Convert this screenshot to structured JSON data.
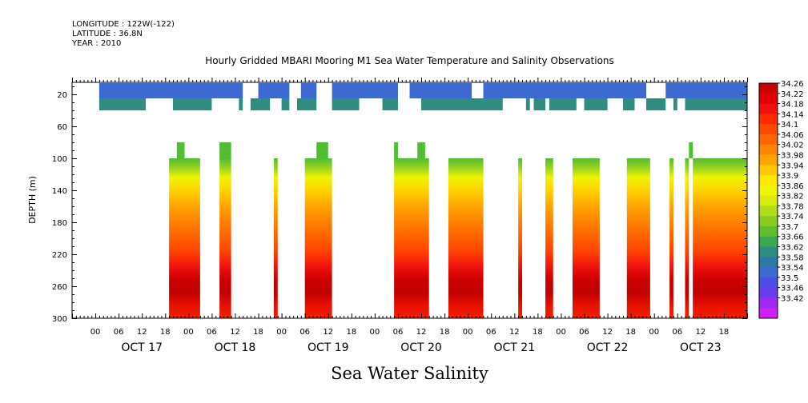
{
  "header": {
    "longitude": "LONGITUDE : 122W(-122)",
    "latitude": "LATITUDE : 36.8N",
    "year": "YEAR : 2010"
  },
  "title": "Hourly Gridded MBARI Mooring M1 Sea Water Temperature and Salinity Observations",
  "footer": "Sea Water Salinity",
  "chart_data": {
    "type": "heatmap",
    "title": "Hourly Gridded MBARI Mooring M1 Sea Water Temperature and Salinity Observations",
    "xlabel": "",
    "ylabel": "DEPTH (m)",
    "x_unit": "hours from OCT 16 18:00",
    "xlim": [
      0,
      174
    ],
    "ylim": [
      300,
      5
    ],
    "x_ticks_hours": [
      "00",
      "06",
      "12",
      "18",
      "00",
      "06",
      "12",
      "18",
      "00",
      "06",
      "12",
      "18",
      "00",
      "06",
      "12",
      "18",
      "00",
      "06",
      "12",
      "18",
      "00",
      "06",
      "12",
      "18",
      "00",
      "06",
      "12",
      "18"
    ],
    "x_day_labels": [
      "OCT 17",
      "OCT 18",
      "OCT 19",
      "OCT 20",
      "OCT 21",
      "OCT 22",
      "OCT 23"
    ],
    "y_ticks": [
      20,
      60,
      100,
      140,
      180,
      220,
      260,
      300
    ],
    "colorbar": {
      "min": 33.42,
      "max": 34.26,
      "step": 0.04,
      "labels": [
        "34.26",
        "34.22",
        "34.18",
        "34.14",
        "34.1",
        "34.06",
        "34.02",
        "33.98",
        "33.94",
        "33.9",
        "33.86",
        "33.82",
        "33.78",
        "33.74",
        "33.7",
        "33.66",
        "33.62",
        "33.58",
        "33.54",
        "33.5",
        "33.46",
        "33.42"
      ],
      "colors": [
        "#c80000",
        "#e00000",
        "#f01010",
        "#ff2a00",
        "#ff4800",
        "#ff6600",
        "#ff8400",
        "#ffa400",
        "#ffc800",
        "#ffe800",
        "#f2f500",
        "#d6ec10",
        "#b0dc18",
        "#88cc22",
        "#5ebe30",
        "#3ca850",
        "#2e8c80",
        "#2e78a8",
        "#3c6ad0",
        "#4c4ce6",
        "#6a3cf0",
        "#a028f2",
        "#d020f8"
      ]
    },
    "columns": {
      "surface_segments": [
        [
          4,
          174
        ]
      ],
      "surface_gaps": [
        [
          4,
          7
        ],
        [
          44,
          48
        ],
        [
          56,
          59
        ],
        [
          63,
          67
        ],
        [
          84,
          87
        ],
        [
          103,
          106
        ],
        [
          148,
          153
        ]
      ],
      "mid_segments": [
        [
          4,
          174
        ]
      ],
      "mid_gaps": [
        [
          4,
          7
        ],
        [
          19,
          26
        ],
        [
          36,
          43
        ],
        [
          44,
          46
        ],
        [
          51,
          54
        ],
        [
          56,
          58
        ],
        [
          63,
          67
        ],
        [
          74,
          80
        ],
        [
          84,
          90
        ],
        [
          111,
          114
        ],
        [
          114,
          117
        ],
        [
          118,
          119
        ],
        [
          122,
          123
        ],
        [
          130,
          132
        ],
        [
          138,
          142
        ],
        [
          145,
          148
        ],
        [
          153,
          155
        ],
        [
          156,
          158
        ]
      ],
      "deep_segments": [
        [
          25,
          33
        ],
        [
          38,
          41
        ],
        [
          52,
          53
        ],
        [
          60,
          67
        ],
        [
          83,
          92
        ],
        [
          97,
          106
        ],
        [
          115,
          116
        ],
        [
          122,
          124
        ],
        [
          129,
          136
        ],
        [
          143,
          149
        ],
        [
          154,
          155
        ],
        [
          158,
          159
        ],
        [
          160,
          174
        ]
      ],
      "deep_tops": [
        {
          "x": [
            27,
            29
          ],
          "top": 80
        },
        {
          "x": [
            38,
            41
          ],
          "top": 80
        },
        {
          "x": [
            63,
            66
          ],
          "top": 80
        },
        {
          "x": [
            83,
            84
          ],
          "top": 80
        },
        {
          "x": [
            89,
            91
          ],
          "top": 80
        },
        {
          "x": [
            159,
            160
          ],
          "top": 80
        }
      ]
    },
    "depth_profile": [
      {
        "depth": 90,
        "value": 33.78
      },
      {
        "depth": 110,
        "value": 33.9
      },
      {
        "depth": 140,
        "value": 34.0
      },
      {
        "depth": 170,
        "value": 34.06
      },
      {
        "depth": 200,
        "value": 34.1
      },
      {
        "depth": 230,
        "value": 34.16
      },
      {
        "depth": 250,
        "value": 34.22
      },
      {
        "depth": 265,
        "value": 34.24
      },
      {
        "depth": 285,
        "value": 34.18
      },
      {
        "depth": 300,
        "value": 34.2
      }
    ],
    "surface_value": 33.52,
    "mid_value": 33.6,
    "grid": false,
    "legend": "right"
  }
}
